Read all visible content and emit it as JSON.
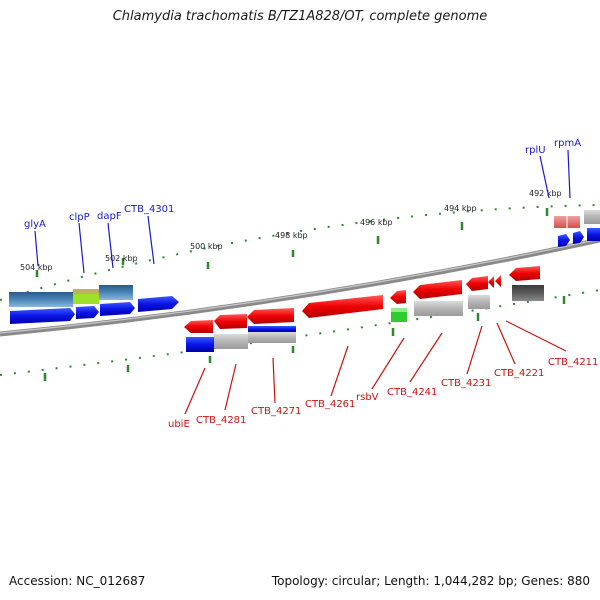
{
  "title": "Chlamydia trachomatis B/TZ1A828/OT, complete genome",
  "footer": {
    "accession": "Accession: NC_012687",
    "topology": "Topology: circular; Length: 1,044,282 bp; Genes: 880"
  },
  "scale_labels": [
    "504 kbp",
    "502 kbp",
    "500 kbp",
    "498 kbp",
    "496 kbp",
    "494 kbp",
    "492 kbp"
  ],
  "forward_genes": [
    "glyA",
    "clpP",
    "dapF",
    "CTB_4301",
    "rplU",
    "rpmA"
  ],
  "reverse_genes": [
    "ubiE",
    "CTB_4281",
    "CTB_4271",
    "CTB_4261",
    "rsbV",
    "CTB_4241",
    "CTB_4231",
    "CTB_4221",
    "CTB_4211"
  ],
  "colors": {
    "forward_label": "#1a1ac8",
    "reverse_label": "#cc1111",
    "forward_gene": "#0a14e6",
    "reverse_gene": "#ee1111",
    "backbone": "#888888",
    "tick": "#2a8a2a"
  }
}
